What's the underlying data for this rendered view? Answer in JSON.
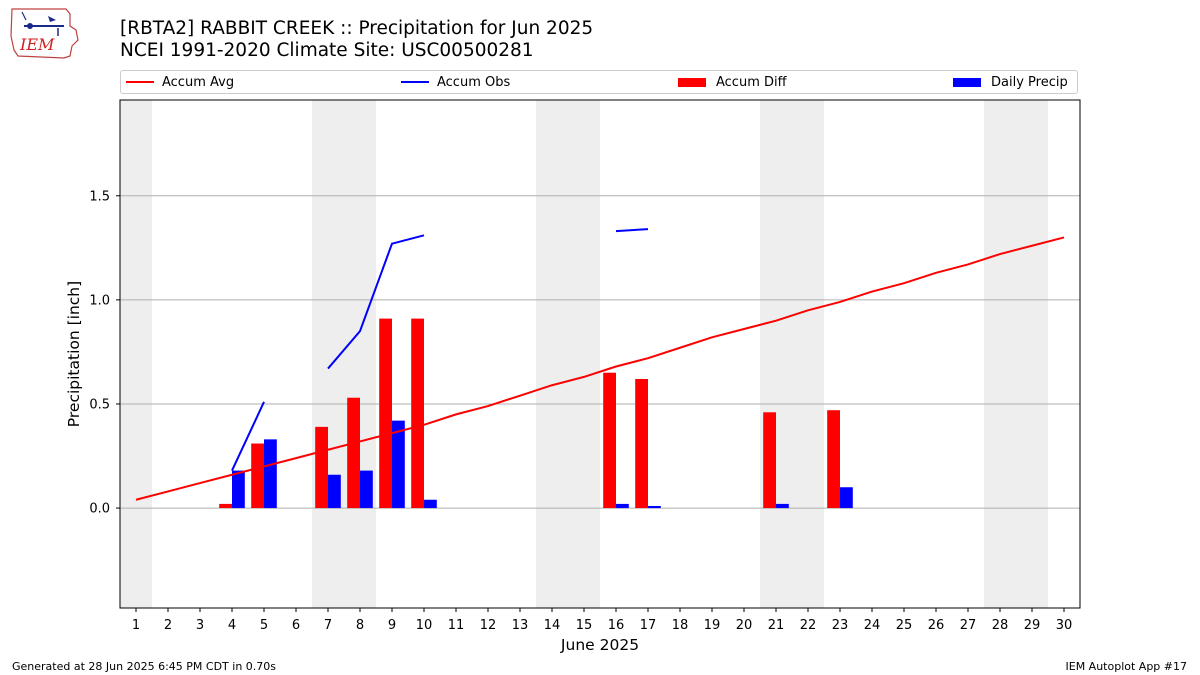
{
  "header": {
    "title_line1": "[RBTA2] RABBIT CREEK :: Precipitation for Jun 2025",
    "title_line2": "NCEI 1991-2020 Climate Site: USC00500281",
    "logo_text": "IEM"
  },
  "legend": {
    "items": [
      {
        "label": "Accum Avg",
        "color": "#ff0000",
        "kind": "line"
      },
      {
        "label": "Accum Obs",
        "color": "#0000ff",
        "kind": "line"
      },
      {
        "label": "Accum Diff",
        "color": "#ff0000",
        "kind": "bar"
      },
      {
        "label": "Daily Precip",
        "color": "#0000ff",
        "kind": "bar"
      }
    ]
  },
  "footer": {
    "left": "Generated at 28 Jun 2025 6:45 PM CDT in 0.70s",
    "right": "IEM Autoplot App #17"
  },
  "chart_data": {
    "type": "bar",
    "xlabel": "June 2025",
    "ylabel": "Precipitation [inch]",
    "xlim": [
      0.5,
      30.5
    ],
    "ylim": [
      -0.48,
      1.96
    ],
    "yticks": [
      0.0,
      0.5,
      1.0,
      1.5
    ],
    "ytick_labels": [
      "0.0",
      "0.5",
      "1.0",
      "1.5"
    ],
    "days": [
      1,
      2,
      3,
      4,
      5,
      6,
      7,
      8,
      9,
      10,
      11,
      12,
      13,
      14,
      15,
      16,
      17,
      18,
      19,
      20,
      21,
      22,
      23,
      24,
      25,
      26,
      27,
      28,
      29,
      30
    ],
    "weekend_days": [
      1,
      7,
      8,
      14,
      15,
      21,
      22,
      28,
      29
    ],
    "grid": "horizontal",
    "series": [
      {
        "name": "Accum Avg",
        "kind": "line",
        "color": "#ff0000",
        "values": [
          0.04,
          0.08,
          0.12,
          0.16,
          0.2,
          0.24,
          0.28,
          0.32,
          0.36,
          0.4,
          0.45,
          0.49,
          0.54,
          0.59,
          0.63,
          0.68,
          0.72,
          0.77,
          0.82,
          0.86,
          0.9,
          0.95,
          0.99,
          1.04,
          1.08,
          1.13,
          1.17,
          1.22,
          1.26,
          1.3
        ]
      },
      {
        "name": "Accum Obs",
        "kind": "line",
        "color": "#0000ff",
        "values": [
          null,
          null,
          null,
          0.18,
          0.51,
          null,
          0.67,
          0.85,
          1.27,
          1.31,
          null,
          null,
          null,
          null,
          null,
          1.33,
          1.34,
          null,
          null,
          null,
          null,
          null,
          null,
          null,
          null,
          null,
          null,
          null,
          null,
          null
        ]
      },
      {
        "name": "Accum Diff",
        "kind": "bar",
        "color": "#ff0000",
        "values": [
          null,
          null,
          null,
          0.02,
          0.31,
          null,
          0.39,
          0.53,
          0.91,
          0.91,
          null,
          null,
          null,
          null,
          null,
          0.65,
          0.62,
          null,
          null,
          null,
          0.46,
          null,
          0.47,
          null,
          null,
          null,
          null,
          null,
          null,
          null
        ]
      },
      {
        "name": "Daily Precip",
        "kind": "bar",
        "color": "#0000ff",
        "values": [
          null,
          null,
          null,
          0.18,
          0.33,
          null,
          0.16,
          0.18,
          0.42,
          0.04,
          null,
          null,
          null,
          null,
          null,
          0.02,
          0.01,
          null,
          null,
          null,
          0.02,
          null,
          0.1,
          null,
          null,
          null,
          null,
          null,
          null,
          null
        ]
      }
    ]
  }
}
